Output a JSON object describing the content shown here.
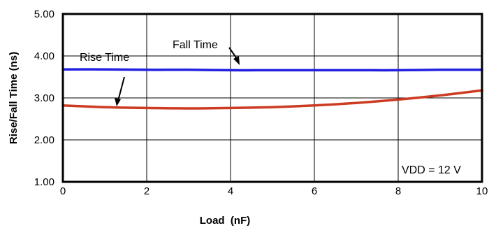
{
  "chart_data": {
    "type": "line",
    "title": "",
    "xlabel": "Load  (nF)",
    "ylabel": "Rise/Fall Time (ns)",
    "xlim": [
      0,
      10
    ],
    "ylim": [
      1.0,
      5.0
    ],
    "xticks": [
      0,
      2,
      4,
      6,
      8,
      10
    ],
    "xtick_labels": [
      "0",
      "2",
      "4",
      "6",
      "8",
      "10"
    ],
    "yticks": [
      1.0,
      2.0,
      3.0,
      4.0,
      5.0
    ],
    "ytick_labels": [
      "1.00",
      "2.00",
      "3.00",
      "4.00",
      "5.00"
    ],
    "grid": true,
    "series": [
      {
        "name": "Fall Time",
        "color": "#2020e0",
        "x": [
          0,
          1,
          2,
          3,
          4,
          5,
          6,
          7,
          8,
          9,
          10
        ],
        "y": [
          3.68,
          3.68,
          3.67,
          3.67,
          3.66,
          3.66,
          3.66,
          3.66,
          3.66,
          3.67,
          3.67
        ]
      },
      {
        "name": "Rise Time",
        "color": "#cc3b22",
        "x": [
          0,
          1,
          2,
          3,
          4,
          5,
          6,
          7,
          8,
          9,
          10
        ],
        "y": [
          2.82,
          2.78,
          2.76,
          2.75,
          2.76,
          2.78,
          2.82,
          2.88,
          2.96,
          3.06,
          3.18
        ]
      }
    ],
    "annotations": [
      {
        "text": "Fall Time"
      },
      {
        "text": "Rise Time"
      },
      {
        "text": "VDD = 12 V"
      }
    ]
  }
}
